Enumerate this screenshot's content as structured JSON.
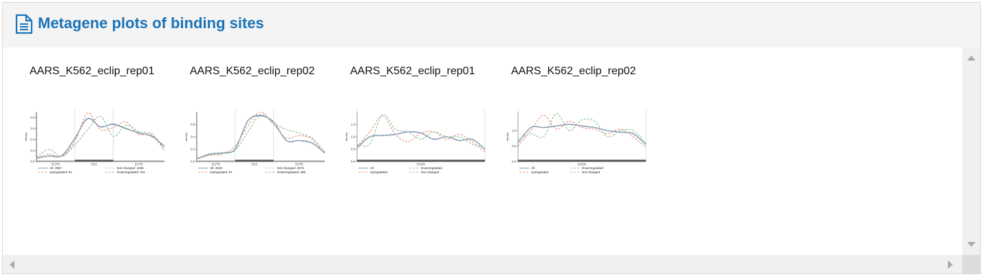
{
  "header": {
    "title": "Metagene plots of binding sites",
    "icon": "document-icon"
  },
  "colors": {
    "title": "#1a73b8",
    "all": "#6f8fb5",
    "up": "#e88a7c",
    "down": "#7fbf8a",
    "notchanged": "#bbbbbb"
  },
  "chart_data": [
    {
      "type": "line",
      "title": "AARS_K562_eclip_rep01",
      "ylabel": "density",
      "regions": [
        "5'UTR",
        "CDS",
        "3'UTR"
      ],
      "region_bounds": [
        0,
        0.3,
        0.6,
        1.0
      ],
      "ylim": [
        0,
        0.9
      ],
      "yticks": [
        "0.0",
        "0.2",
        "0.4",
        "0.6",
        "0.8"
      ],
      "x": [
        0,
        0.1,
        0.2,
        0.3,
        0.4,
        0.5,
        0.6,
        0.7,
        0.8,
        0.9,
        1.0
      ],
      "legend": [
        "All: 4587",
        "Not changed: 4265",
        "Upregulated: 81",
        "Downregulated: 241"
      ],
      "series": [
        {
          "key": "all",
          "values": [
            0.06,
            0.1,
            0.11,
            0.42,
            0.78,
            0.63,
            0.68,
            0.6,
            0.52,
            0.46,
            0.28
          ]
        },
        {
          "key": "up",
          "values": [
            0.07,
            0.13,
            0.1,
            0.36,
            0.88,
            0.58,
            0.62,
            0.72,
            0.49,
            0.51,
            0.22
          ]
        },
        {
          "key": "notchanged",
          "values": [
            0.06,
            0.1,
            0.12,
            0.43,
            0.77,
            0.64,
            0.67,
            0.59,
            0.53,
            0.45,
            0.29
          ]
        },
        {
          "key": "down",
          "values": [
            0.08,
            0.22,
            0.09,
            0.3,
            0.58,
            0.82,
            0.46,
            0.66,
            0.55,
            0.49,
            0.2
          ]
        }
      ]
    },
    {
      "type": "line",
      "title": "AARS_K562_eclip_rep02",
      "ylabel": "density",
      "regions": [
        "5'UTR",
        "CDS",
        "3'UTR"
      ],
      "region_bounds": [
        0,
        0.3,
        0.6,
        1.0
      ],
      "ylim": [
        0,
        0.8
      ],
      "yticks": [
        "0.0",
        "0.2",
        "0.4",
        "0.6"
      ],
      "x": [
        0,
        0.1,
        0.2,
        0.3,
        0.4,
        0.5,
        0.6,
        0.7,
        0.8,
        0.9,
        1.0
      ],
      "legend": [
        "All: 4948",
        "Not changed: 4576",
        "Upregulated: 87",
        "Downregulated: 285"
      ],
      "series": [
        {
          "key": "all",
          "values": [
            0.04,
            0.12,
            0.14,
            0.2,
            0.66,
            0.74,
            0.64,
            0.34,
            0.34,
            0.3,
            0.14
          ]
        },
        {
          "key": "up",
          "values": [
            0.04,
            0.1,
            0.12,
            0.25,
            0.58,
            0.8,
            0.6,
            0.38,
            0.42,
            0.36,
            0.12
          ]
        },
        {
          "key": "notchanged",
          "values": [
            0.04,
            0.12,
            0.14,
            0.2,
            0.66,
            0.73,
            0.64,
            0.34,
            0.34,
            0.3,
            0.14
          ]
        },
        {
          "key": "down",
          "values": [
            0.05,
            0.11,
            0.13,
            0.18,
            0.48,
            0.76,
            0.62,
            0.52,
            0.46,
            0.38,
            0.16
          ]
        }
      ]
    },
    {
      "type": "line",
      "title": "AARS_K562_eclip_rep01",
      "ylabel": "density",
      "regions": [
        "EXON"
      ],
      "region_bounds": [
        0,
        1.0
      ],
      "ylim": [
        0,
        2.0
      ],
      "yticks": [
        "0.0",
        "0.5",
        "1.0",
        "1.5"
      ],
      "x": [
        0,
        0.1,
        0.2,
        0.3,
        0.4,
        0.5,
        0.6,
        0.7,
        0.8,
        0.9,
        1.0
      ],
      "legend": [
        "All",
        "Downregulated",
        "Upregulated",
        "Not changed"
      ],
      "series": [
        {
          "key": "all",
          "values": [
            0.55,
            1.0,
            1.05,
            1.1,
            1.2,
            1.15,
            0.9,
            1.0,
            0.85,
            0.9,
            0.5
          ]
        },
        {
          "key": "up",
          "values": [
            0.6,
            1.2,
            1.85,
            1.1,
            0.8,
            1.15,
            1.2,
            0.9,
            1.1,
            0.8,
            0.4
          ]
        },
        {
          "key": "down",
          "values": [
            0.7,
            0.7,
            1.9,
            1.3,
            1.2,
            0.9,
            1.2,
            1.0,
            1.0,
            0.7,
            0.55
          ]
        },
        {
          "key": "notchanged",
          "values": [
            0.56,
            1.0,
            1.05,
            1.11,
            1.2,
            1.14,
            0.91,
            1.0,
            0.86,
            0.9,
            0.51
          ]
        }
      ]
    },
    {
      "type": "line",
      "title": "AARS_K562_eclip_rep02",
      "ylabel": "density",
      "regions": [
        "EXON"
      ],
      "region_bounds": [
        0,
        1.0
      ],
      "ylim": [
        0,
        1.6
      ],
      "yticks": [
        "0.0",
        "0.5",
        "1.0"
      ],
      "x": [
        0,
        0.1,
        0.2,
        0.3,
        0.4,
        0.5,
        0.6,
        0.7,
        0.8,
        0.9,
        1.0
      ],
      "legend": [
        "All",
        "Downregulated",
        "Upregulated",
        "Not changed"
      ],
      "series": [
        {
          "key": "all",
          "values": [
            0.6,
            1.1,
            1.1,
            1.15,
            1.2,
            1.15,
            1.1,
            1.0,
            0.95,
            0.9,
            0.55
          ]
        },
        {
          "key": "up",
          "values": [
            0.5,
            1.0,
            1.5,
            1.05,
            1.3,
            1.1,
            1.05,
            0.9,
            1.05,
            0.8,
            0.45
          ]
        },
        {
          "key": "down",
          "values": [
            0.7,
            0.9,
            0.8,
            1.55,
            1.0,
            1.35,
            1.3,
            0.8,
            1.0,
            1.0,
            0.6
          ]
        },
        {
          "key": "notchanged",
          "values": [
            0.61,
            1.1,
            1.1,
            1.15,
            1.2,
            1.15,
            1.1,
            1.0,
            0.95,
            0.9,
            0.56
          ]
        }
      ]
    }
  ]
}
